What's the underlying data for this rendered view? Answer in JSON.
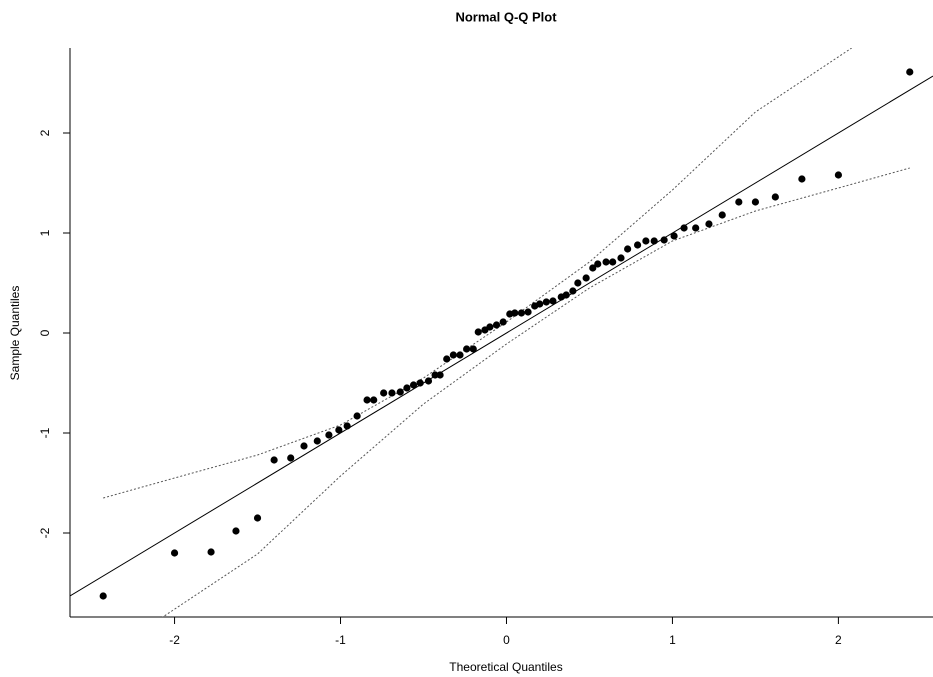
{
  "chart_data": {
    "type": "scatter",
    "title": "Normal Q-Q Plot",
    "x_label": "Theoretical Quantiles",
    "y_label": "Sample Quantiles",
    "xlim": [
      -2.63,
      2.57
    ],
    "ylim": [
      -2.84,
      2.85
    ],
    "xticks": [
      -2,
      -1,
      0,
      1,
      2
    ],
    "yticks": [
      -2,
      -1,
      0,
      1,
      2
    ],
    "color": "#000000",
    "x": [
      -2.43,
      -2.0,
      -1.78,
      -1.63,
      -1.5,
      -1.4,
      -1.3,
      -1.22,
      -1.14,
      -1.07,
      -1.01,
      -0.96,
      -0.9,
      -0.84,
      -0.8,
      -0.74,
      -0.69,
      -0.64,
      -0.6,
      -0.56,
      -0.52,
      -0.47,
      -0.43,
      -0.4,
      -0.36,
      -0.32,
      -0.28,
      -0.24,
      -0.2,
      -0.17,
      -0.13,
      -0.1,
      -0.06,
      -0.02,
      0.02,
      0.05,
      0.09,
      0.13,
      0.17,
      0.2,
      0.24,
      0.28,
      0.33,
      0.36,
      0.4,
      0.43,
      0.48,
      0.52,
      0.55,
      0.6,
      0.64,
      0.69,
      0.73,
      0.79,
      0.84,
      0.89,
      0.95,
      1.01,
      1.07,
      1.14,
      1.22,
      1.3,
      1.4,
      1.5,
      1.62,
      1.78,
      2.0,
      2.43
    ],
    "values": [
      -2.63,
      -2.2,
      -2.19,
      -1.98,
      -1.85,
      -1.27,
      -1.25,
      -1.13,
      -1.08,
      -1.02,
      -0.97,
      -0.93,
      -0.83,
      -0.67,
      -0.67,
      -0.6,
      -0.6,
      -0.59,
      -0.55,
      -0.52,
      -0.5,
      -0.48,
      -0.42,
      -0.42,
      -0.26,
      -0.22,
      -0.22,
      -0.16,
      -0.16,
      0.01,
      0.03,
      0.06,
      0.08,
      0.11,
      0.19,
      0.2,
      0.2,
      0.21,
      0.27,
      0.29,
      0.31,
      0.32,
      0.36,
      0.38,
      0.42,
      0.5,
      0.55,
      0.65,
      0.69,
      0.71,
      0.71,
      0.75,
      0.84,
      0.88,
      0.92,
      0.92,
      0.93,
      0.97,
      1.05,
      1.05,
      1.09,
      1.18,
      1.31,
      1.31,
      1.36,
      1.54,
      1.58,
      2.61
    ],
    "reference_line": {
      "intercept": 0,
      "slope": 1,
      "color": "#000000"
    },
    "bands": {
      "color": "#555555",
      "upper": {
        "x": [
          -2.43,
          -2.0,
          -1.5,
          -1.0,
          -0.5,
          0,
          0.5,
          1.0,
          1.5,
          2.08
        ],
        "values": [
          -1.65,
          -1.45,
          -1.22,
          -0.92,
          -0.45,
          0.11,
          0.71,
          1.43,
          2.21,
          2.85
        ]
      },
      "lower": {
        "x": [
          -2.08,
          -1.5,
          -1.0,
          -0.5,
          0,
          0.5,
          1.0,
          1.5,
          2.0,
          2.43
        ],
        "values": [
          -2.85,
          -2.21,
          -1.43,
          -0.71,
          -0.11,
          0.45,
          0.92,
          1.22,
          1.45,
          1.65
        ]
      }
    }
  }
}
